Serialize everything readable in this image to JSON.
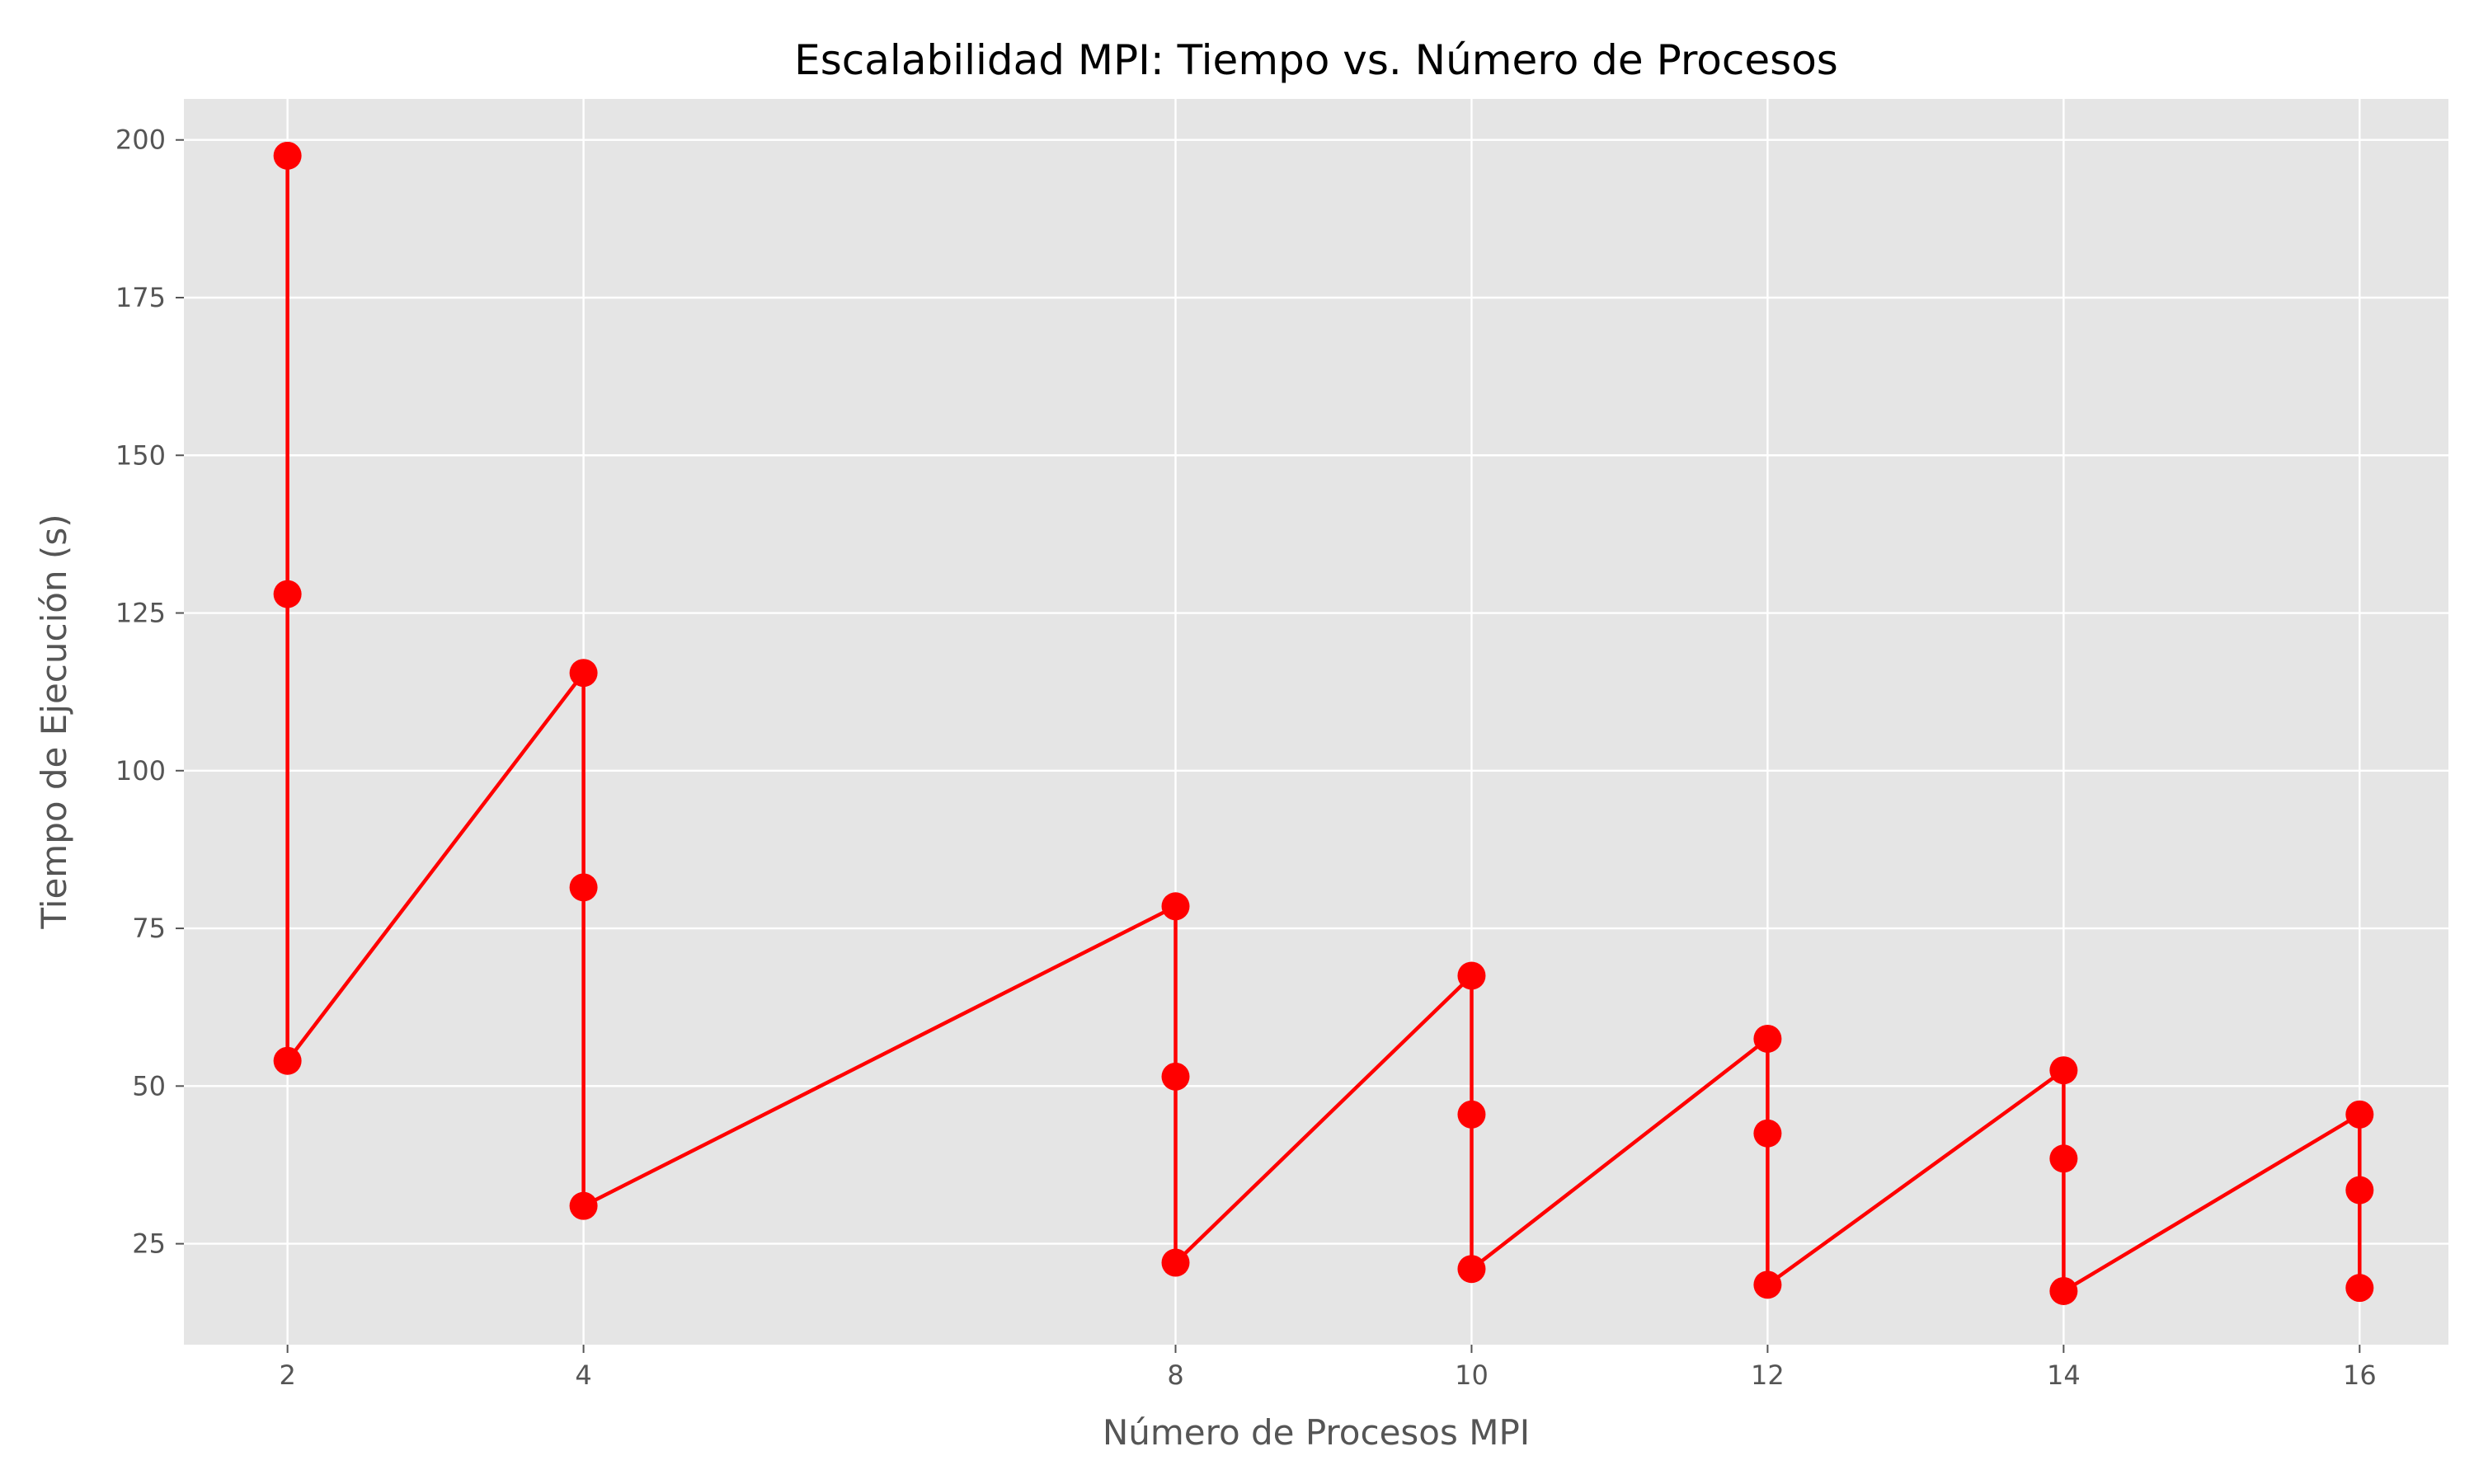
{
  "chart_data": {
    "type": "line",
    "title": "Escalabilidad MPI: Tiempo vs. Número de Procesos",
    "xlabel": "Número de Procesos MPI",
    "ylabel": "Tiempo de Ejecución (s)",
    "xticks": [
      "2",
      "4",
      "8",
      "10",
      "12",
      "14",
      "16"
    ],
    "yticks": [
      "25",
      "50",
      "75",
      "100",
      "125",
      "150",
      "175",
      "200"
    ],
    "xlim": [
      1.3,
      16.6
    ],
    "ylim": [
      9,
      206.5
    ],
    "grid": true,
    "series": [
      {
        "color": "#ff0000",
        "marker": "circle",
        "points": [
          {
            "x": 2,
            "y": 197.5
          },
          {
            "x": 2,
            "y": 128
          },
          {
            "x": 2,
            "y": 54
          },
          {
            "x": 4,
            "y": 115.5
          },
          {
            "x": 4,
            "y": 81.5
          },
          {
            "x": 4,
            "y": 31
          },
          {
            "x": 8,
            "y": 78.5
          },
          {
            "x": 8,
            "y": 51.5
          },
          {
            "x": 8,
            "y": 22
          },
          {
            "x": 10,
            "y": 67.5
          },
          {
            "x": 10,
            "y": 45.5
          },
          {
            "x": 10,
            "y": 21
          },
          {
            "x": 12,
            "y": 57.5
          },
          {
            "x": 12,
            "y": 42.5
          },
          {
            "x": 12,
            "y": 18.5
          },
          {
            "x": 14,
            "y": 52.5
          },
          {
            "x": 14,
            "y": 38.5
          },
          {
            "x": 14,
            "y": 17.5
          },
          {
            "x": 16,
            "y": 45.5
          },
          {
            "x": 16,
            "y": 33.5
          },
          {
            "x": 16,
            "y": 18
          }
        ]
      }
    ]
  }
}
